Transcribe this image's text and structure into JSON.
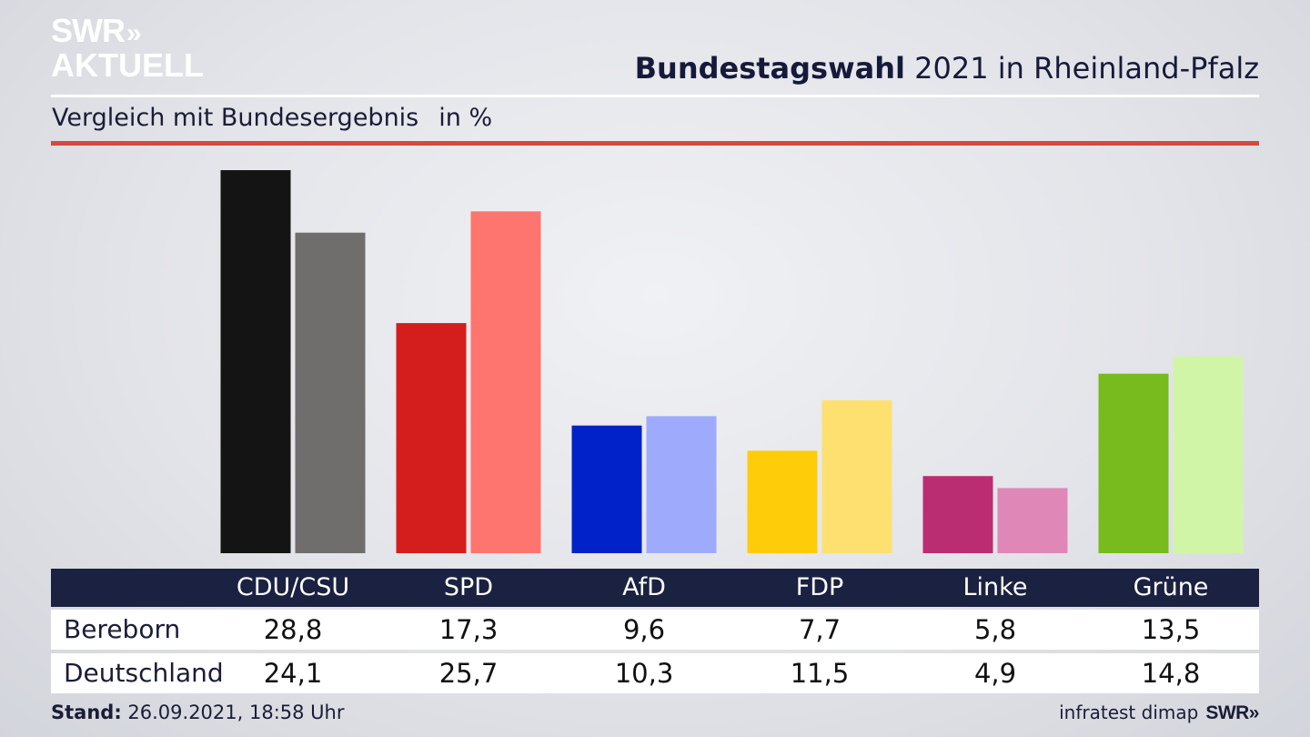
{
  "brand": {
    "line1": "SWR",
    "arrows": "»",
    "line2": "AKTUELL"
  },
  "header": {
    "title_bold": "Bundestagswahl",
    "title_rest": " 2021 in Rheinland-Pfalz",
    "subtitle": "Vergleich mit Bundesergebnis",
    "unit": "in %"
  },
  "colors": {
    "header_bar": "#1b2140",
    "accent_line": "#d44a3e"
  },
  "chart_data": {
    "type": "bar",
    "categories": [
      "CDU/CSU",
      "SPD",
      "AfD",
      "FDP",
      "Linke",
      "Grüne"
    ],
    "series": [
      {
        "name": "Bereborn",
        "values": [
          28.8,
          17.3,
          9.6,
          7.7,
          5.8,
          13.5
        ],
        "colors": [
          "#141414",
          "#d41e1e",
          "#0022c8",
          "#fecc09",
          "#bb2d72",
          "#77bb1f"
        ]
      },
      {
        "name": "Deutschland",
        "values": [
          24.1,
          25.7,
          10.3,
          11.5,
          4.9,
          14.8
        ],
        "colors": [
          "#706e6c",
          "#fd756e",
          "#9eabfd",
          "#fde06f",
          "#df88b8",
          "#d1f5a7"
        ]
      }
    ],
    "ylim": [
      0,
      28.8
    ]
  },
  "table": {
    "headers": [
      "CDU/CSU",
      "SPD",
      "AfD",
      "FDP",
      "Linke",
      "Grüne"
    ],
    "rows": [
      {
        "label": "Bereborn",
        "values": [
          "28,8",
          "17,3",
          "9,6",
          "7,7",
          "5,8",
          "13,5"
        ]
      },
      {
        "label": "Deutschland",
        "values": [
          "24,1",
          "25,7",
          "10,3",
          "11,5",
          "4,9",
          "14,8"
        ]
      }
    ]
  },
  "footer": {
    "stand_label": "Stand:",
    "stand_value": " 26.09.2021, 18:58 Uhr",
    "source": "infratest dimap",
    "brand": "SWR»"
  }
}
